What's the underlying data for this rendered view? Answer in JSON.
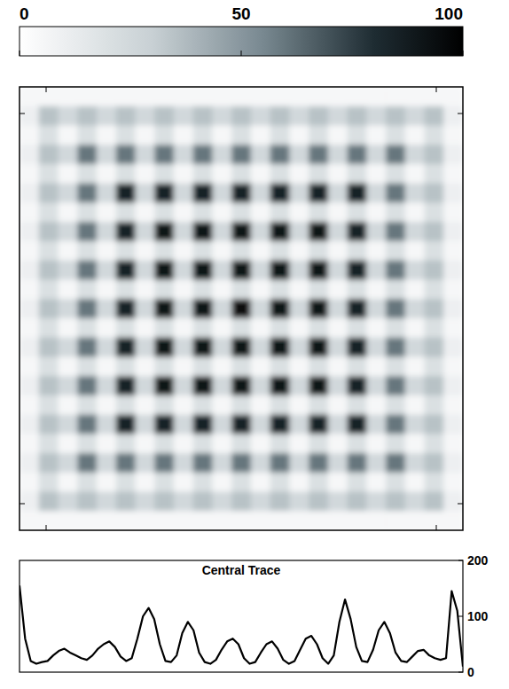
{
  "chart_data": [
    {
      "type": "heatmap",
      "tick_labels": false,
      "colorbar": {
        "range": [
          0,
          100
        ],
        "ticks": [
          0,
          50,
          100
        ]
      },
      "cells": [
        [
          5,
          5,
          5,
          5,
          5,
          5,
          5,
          5,
          5,
          5,
          5,
          5,
          5,
          5,
          5,
          5,
          5,
          5,
          5,
          5,
          5,
          5,
          5
        ],
        [
          10,
          35,
          25,
          35,
          25,
          35,
          25,
          35,
          25,
          35,
          25,
          35,
          25,
          35,
          25,
          35,
          25,
          35,
          25,
          35,
          25,
          35,
          10
        ],
        [
          5,
          20,
          5,
          20,
          5,
          20,
          5,
          20,
          5,
          20,
          5,
          20,
          5,
          20,
          5,
          20,
          5,
          20,
          5,
          20,
          5,
          20,
          5
        ],
        [
          10,
          35,
          25,
          60,
          25,
          60,
          25,
          60,
          25,
          60,
          25,
          60,
          25,
          60,
          25,
          60,
          25,
          60,
          25,
          60,
          25,
          35,
          10
        ],
        [
          5,
          20,
          5,
          20,
          5,
          20,
          5,
          20,
          5,
          20,
          5,
          20,
          5,
          20,
          5,
          20,
          5,
          20,
          5,
          20,
          5,
          20,
          5
        ],
        [
          10,
          35,
          25,
          60,
          25,
          85,
          25,
          85,
          25,
          85,
          25,
          85,
          25,
          85,
          25,
          85,
          25,
          85,
          25,
          60,
          25,
          35,
          10
        ],
        [
          5,
          20,
          5,
          20,
          5,
          20,
          5,
          20,
          5,
          20,
          5,
          20,
          5,
          20,
          5,
          20,
          5,
          20,
          5,
          20,
          5,
          20,
          5
        ],
        [
          10,
          35,
          25,
          60,
          25,
          85,
          25,
          90,
          25,
          90,
          25,
          90,
          25,
          90,
          25,
          90,
          25,
          85,
          25,
          60,
          25,
          35,
          10
        ],
        [
          5,
          20,
          5,
          20,
          5,
          20,
          5,
          20,
          5,
          20,
          5,
          20,
          5,
          20,
          5,
          20,
          5,
          20,
          5,
          20,
          5,
          20,
          5
        ],
        [
          10,
          35,
          25,
          60,
          25,
          85,
          25,
          90,
          25,
          92,
          25,
          92,
          25,
          92,
          25,
          90,
          25,
          85,
          25,
          60,
          25,
          35,
          10
        ],
        [
          5,
          20,
          5,
          20,
          5,
          20,
          5,
          20,
          5,
          20,
          5,
          20,
          5,
          20,
          5,
          20,
          5,
          20,
          5,
          20,
          5,
          20,
          5
        ],
        [
          10,
          35,
          25,
          60,
          25,
          85,
          25,
          90,
          25,
          92,
          25,
          95,
          25,
          92,
          25,
          90,
          25,
          85,
          25,
          60,
          25,
          35,
          10
        ],
        [
          5,
          20,
          5,
          20,
          5,
          20,
          5,
          20,
          5,
          20,
          5,
          20,
          5,
          20,
          5,
          20,
          5,
          20,
          5,
          20,
          5,
          20,
          5
        ],
        [
          10,
          35,
          25,
          60,
          25,
          85,
          25,
          90,
          25,
          92,
          25,
          92,
          25,
          92,
          25,
          90,
          25,
          85,
          25,
          60,
          25,
          35,
          10
        ],
        [
          5,
          20,
          5,
          20,
          5,
          20,
          5,
          20,
          5,
          20,
          5,
          20,
          5,
          20,
          5,
          20,
          5,
          20,
          5,
          20,
          5,
          20,
          5
        ],
        [
          10,
          35,
          25,
          60,
          25,
          85,
          25,
          90,
          25,
          90,
          25,
          90,
          25,
          90,
          25,
          90,
          25,
          85,
          25,
          60,
          25,
          35,
          10
        ],
        [
          5,
          20,
          5,
          20,
          5,
          20,
          5,
          20,
          5,
          20,
          5,
          20,
          5,
          20,
          5,
          20,
          5,
          20,
          5,
          20,
          5,
          20,
          5
        ],
        [
          10,
          35,
          25,
          60,
          25,
          85,
          25,
          85,
          25,
          85,
          25,
          85,
          25,
          85,
          25,
          85,
          25,
          85,
          25,
          60,
          25,
          35,
          10
        ],
        [
          5,
          20,
          5,
          20,
          5,
          20,
          5,
          20,
          5,
          20,
          5,
          20,
          5,
          20,
          5,
          20,
          5,
          20,
          5,
          20,
          5,
          20,
          5
        ],
        [
          10,
          35,
          25,
          60,
          25,
          60,
          25,
          60,
          25,
          60,
          25,
          60,
          25,
          60,
          25,
          60,
          25,
          60,
          25,
          60,
          25,
          35,
          10
        ],
        [
          5,
          20,
          5,
          20,
          5,
          20,
          5,
          20,
          5,
          20,
          5,
          20,
          5,
          20,
          5,
          20,
          5,
          20,
          5,
          20,
          5,
          20,
          5
        ],
        [
          10,
          35,
          25,
          35,
          25,
          35,
          25,
          35,
          25,
          35,
          25,
          35,
          25,
          35,
          25,
          35,
          25,
          35,
          25,
          35,
          25,
          35,
          10
        ],
        [
          5,
          5,
          5,
          5,
          5,
          5,
          5,
          5,
          5,
          5,
          5,
          5,
          5,
          5,
          5,
          5,
          5,
          5,
          5,
          5,
          5,
          5,
          5
        ]
      ]
    },
    {
      "type": "line",
      "title": "Central Trace",
      "color": "#000000",
      "tick_labels": "y",
      "xlim": [
        0,
        79
      ],
      "ylim": [
        0,
        200
      ],
      "yticks": [
        0,
        100,
        200
      ],
      "x": [
        0,
        1,
        2,
        3,
        4,
        5,
        6,
        7,
        8,
        9,
        10,
        11,
        12,
        13,
        14,
        15,
        16,
        17,
        18,
        19,
        20,
        21,
        22,
        23,
        24,
        25,
        26,
        27,
        28,
        29,
        30,
        31,
        32,
        33,
        34,
        35,
        36,
        37,
        38,
        39,
        40,
        41,
        42,
        43,
        44,
        45,
        46,
        47,
        48,
        49,
        50,
        51,
        52,
        53,
        54,
        55,
        56,
        57,
        58,
        59,
        60,
        61,
        62,
        63,
        64,
        65,
        66,
        67,
        68,
        69,
        70,
        71,
        72,
        73,
        74,
        75,
        76,
        77,
        78,
        79
      ],
      "values": [
        155,
        60,
        20,
        15,
        18,
        20,
        30,
        38,
        42,
        35,
        30,
        25,
        22,
        30,
        42,
        50,
        55,
        45,
        28,
        20,
        25,
        60,
        100,
        115,
        95,
        50,
        20,
        18,
        30,
        70,
        90,
        75,
        35,
        18,
        15,
        22,
        40,
        55,
        60,
        50,
        25,
        15,
        18,
        35,
        50,
        55,
        42,
        22,
        15,
        20,
        40,
        60,
        65,
        50,
        25,
        15,
        30,
        90,
        130,
        95,
        45,
        20,
        18,
        40,
        75,
        90,
        70,
        35,
        20,
        18,
        28,
        38,
        40,
        30,
        25,
        22,
        25,
        145,
        110,
        10
      ]
    }
  ]
}
